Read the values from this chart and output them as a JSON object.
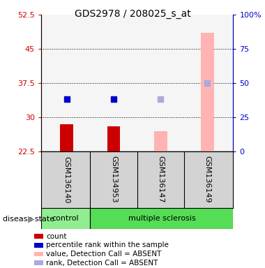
{
  "title": "GDS2978 / 208025_s_at",
  "samples": [
    "GSM136140",
    "GSM134953",
    "GSM136147",
    "GSM136149"
  ],
  "x_positions": [
    0,
    1,
    2,
    3
  ],
  "ylim": [
    22.5,
    52.5
  ],
  "yticks": [
    22.5,
    30,
    37.5,
    45,
    52.5
  ],
  "ytick_labels": [
    "22.5",
    "30",
    "37.5",
    "45",
    "52.5"
  ],
  "right_yticks": [
    0,
    25,
    50,
    75,
    100
  ],
  "right_ytick_labels": [
    "0",
    "25",
    "50",
    "75",
    "100%"
  ],
  "grid_lines": [
    30,
    37.5,
    45
  ],
  "bar_values": [
    28.5,
    28.0,
    27.0,
    48.5
  ],
  "bar_colors": [
    "#cc0000",
    "#cc0000",
    "#ffb3b3",
    "#ffb3b3"
  ],
  "bar_width": 0.28,
  "square_values": [
    34.0,
    34.0,
    34.0,
    37.5
  ],
  "square_colors": [
    "#0000cc",
    "#0000cc",
    "#aaaadd",
    "#aaaadd"
  ],
  "legend_items": [
    {
      "color": "#cc0000",
      "label": "count"
    },
    {
      "color": "#0000cc",
      "label": "percentile rank within the sample"
    },
    {
      "color": "#ffb3b3",
      "label": "value, Detection Call = ABSENT"
    },
    {
      "color": "#aaaadd",
      "label": "rank, Detection Call = ABSENT"
    }
  ],
  "left_axis_color": "#cc0000",
  "right_axis_color": "#0000cc",
  "plot_bg_color": "#f5f5f5",
  "sample_bg_color": "#d3d3d3",
  "control_color": "#90ee90",
  "ms_color": "#55dd55"
}
